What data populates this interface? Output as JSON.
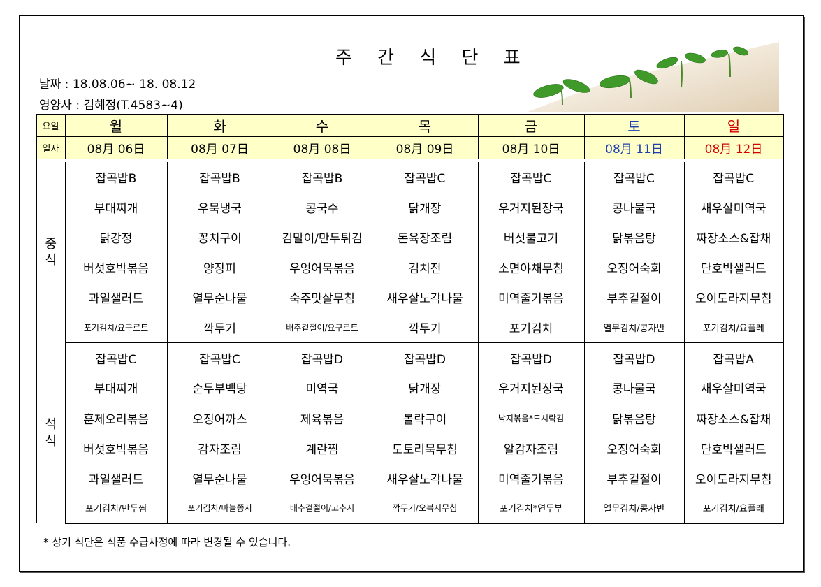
{
  "title": "주 간 식 단 표",
  "date_line": "날짜 : 18.08.06~ 18. 08.12",
  "dietitian_line": "영양사 : 김혜정(T.4583~4)",
  "header": {
    "day_label": "요일",
    "date_label": "일자"
  },
  "days": [
    {
      "day": "월",
      "date": "08月 06日",
      "color": "#000000"
    },
    {
      "day": "화",
      "date": "08月 07日",
      "color": "#000000"
    },
    {
      "day": "수",
      "date": "08月 08日",
      "color": "#000000"
    },
    {
      "day": "목",
      "date": "08月 09日",
      "color": "#000000"
    },
    {
      "day": "금",
      "date": "08月 10日",
      "color": "#000000"
    },
    {
      "day": "토",
      "date": "08月 11日",
      "color": "#1f3fb0"
    },
    {
      "day": "일",
      "date": "08月 12日",
      "color": "#d40000"
    }
  ],
  "lunch": {
    "label": "중식",
    "rows": [
      [
        "잡곡밥B",
        "잡곡밥B",
        "잡곡밥B",
        "잡곡밥C",
        "잡곡밥C",
        "잡곡밥C",
        "잡곡밥C"
      ],
      [
        "부대찌개",
        "우묵냉국",
        "콩국수",
        "닭개장",
        "우거지된장국",
        "콩나물국",
        "새우살미역국"
      ],
      [
        "닭강정",
        "꽁치구이",
        "김말이/만두튀김",
        "돈육장조림",
        "버섯불고기",
        "닭볶음탕",
        "짜장소스&잡채"
      ],
      [
        "버섯호박볶음",
        "양장피",
        "우엉어묵볶음",
        "김치전",
        "소면야채무침",
        "오징어숙회",
        "단호박샐러드"
      ],
      [
        "과일샐러드",
        "열무순나물",
        "숙주맛살무침",
        "새우살노각나물",
        "미역줄기볶음",
        "부추겉절이",
        "오이도라지무침"
      ],
      [
        "포기김치/요구르트",
        "깍두기",
        "배추겉절이/요구르트",
        "깍두기",
        "포기김치",
        "열무김치/콩자반",
        "포기김치/요플레"
      ]
    ]
  },
  "dinner": {
    "label": "석식",
    "rows": [
      [
        "잡곡밥C",
        "잡곡밥C",
        "잡곡밥D",
        "잡곡밥D",
        "잡곡밥D",
        "잡곡밥D",
        "잡곡밥A"
      ],
      [
        "부대찌개",
        "순두부백탕",
        "미역국",
        "닭개장",
        "우거지된장국",
        "콩나물국",
        "새우살미역국"
      ],
      [
        "훈제오리볶음",
        "오징어까스",
        "제육볶음",
        "볼락구이",
        "낙지볶음*도시락김",
        "닭볶음탕",
        "짜장소스&잡채"
      ],
      [
        "버섯호박볶음",
        "감자조림",
        "계란찜",
        "도토리묵무침",
        "알감자조림",
        "오징어숙회",
        "단호박샐러드"
      ],
      [
        "과일샐러드",
        "열무순나물",
        "우엉어묵볶음",
        "새우살노각나물",
        "미역줄기볶음",
        "부추겉절이",
        "오이도라지무침"
      ],
      [
        "포기김치/만두찜",
        "포기김치/마늘쫑지",
        "배추겉절이/고추지",
        "깍두기/오복지무침",
        "포기김치*연두부",
        "열무김치/콩자반",
        "포기김치/요플래"
      ]
    ]
  },
  "footnote": "* 상기 식단은 식품 수급사정에 따라 변경될 수 있습니다."
}
